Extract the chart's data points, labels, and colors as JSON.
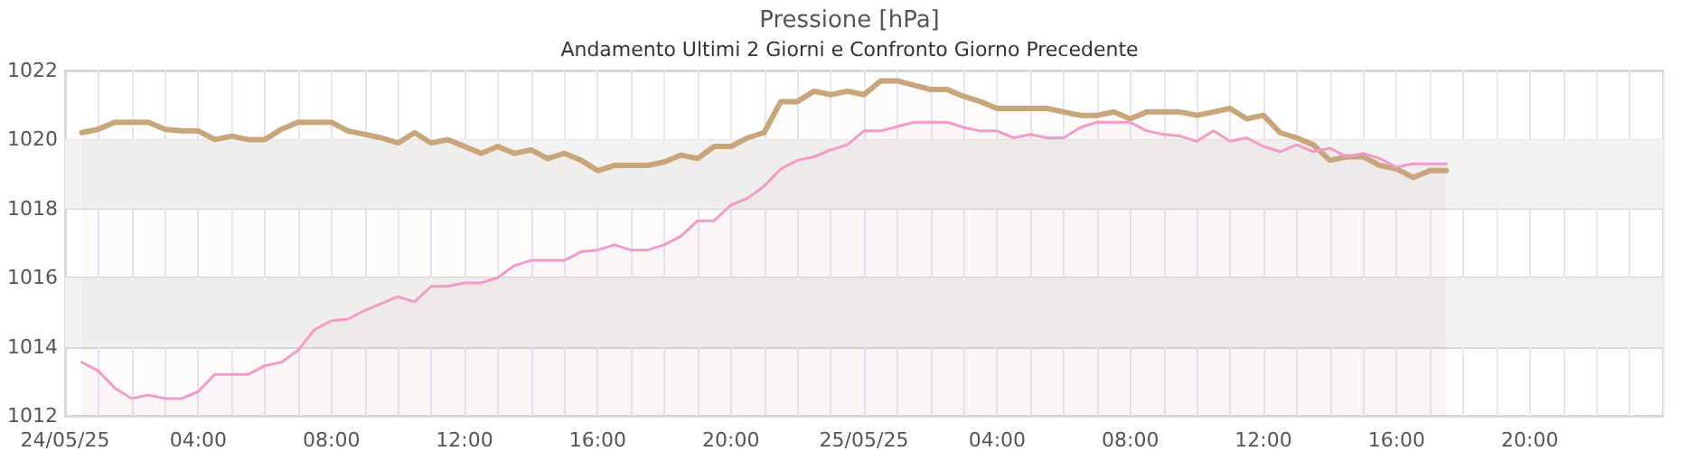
{
  "chart_data": {
    "type": "area",
    "title": "Pressione [hPa]",
    "subtitle": "Andamento Ultimi 2 Giorni e Confronto Giorno Precedente",
    "xlim": [
      "--05-24T00:00",
      "--05-26T00:00"
    ],
    "xticks": [
      {
        "value": "--05-24T00:00",
        "label": "24/05/25"
      },
      {
        "value": "--05-24T01:00",
        "label": null
      },
      {
        "value": "--05-24T02:00",
        "label": null
      },
      {
        "value": "--05-24T03:00",
        "label": null
      },
      {
        "value": "--05-24T04:00",
        "label": "04:00"
      },
      {
        "value": "--05-24T05:00",
        "label": null
      },
      {
        "value": "--05-24T06:00",
        "label": null
      },
      {
        "value": "--05-24T07:00",
        "label": null
      },
      {
        "value": "--05-24T08:00",
        "label": "08:00"
      },
      {
        "value": "--05-24T09:00",
        "label": null
      },
      {
        "value": "--05-24T10:00",
        "label": null
      },
      {
        "value": "--05-24T11:00",
        "label": null
      },
      {
        "value": "--05-24T12:00",
        "label": "12:00"
      },
      {
        "value": "--05-24T13:00",
        "label": null
      },
      {
        "value": "--05-24T14:00",
        "label": null
      },
      {
        "value": "--05-24T15:00",
        "label": null
      },
      {
        "value": "--05-24T16:00",
        "label": "16:00"
      },
      {
        "value": "--05-24T17:00",
        "label": null
      },
      {
        "value": "--05-24T18:00",
        "label": null
      },
      {
        "value": "--05-24T19:00",
        "label": null
      },
      {
        "value": "--05-24T20:00",
        "label": "20:00"
      },
      {
        "value": "--05-24T21:00",
        "label": null
      },
      {
        "value": "--05-24T22:00",
        "label": null
      },
      {
        "value": "--05-24T23:00",
        "label": null
      },
      {
        "value": "--05-25T00:00",
        "label": "25/05/25"
      },
      {
        "value": "--05-25T01:00",
        "label": null
      },
      {
        "value": "--05-25T02:00",
        "label": null
      },
      {
        "value": "--05-25T03:00",
        "label": null
      },
      {
        "value": "--05-25T04:00",
        "label": "04:00"
      },
      {
        "value": "--05-25T05:00",
        "label": null
      },
      {
        "value": "--05-25T06:00",
        "label": null
      },
      {
        "value": "--05-25T07:00",
        "label": null
      },
      {
        "value": "--05-25T08:00",
        "label": "08:00"
      },
      {
        "value": "--05-25T09:00",
        "label": null
      },
      {
        "value": "--05-25T10:00",
        "label": null
      },
      {
        "value": "--05-25T11:00",
        "label": null
      },
      {
        "value": "--05-25T12:00",
        "label": "12:00"
      },
      {
        "value": "--05-25T13:00",
        "label": null
      },
      {
        "value": "--05-25T14:00",
        "label": null
      },
      {
        "value": "--05-25T15:00",
        "label": null
      },
      {
        "value": "--05-25T16:00",
        "label": "16:00"
      },
      {
        "value": "--05-25T17:00",
        "label": null
      },
      {
        "value": "--05-25T18:00",
        "label": null
      },
      {
        "value": "--05-25T19:00",
        "label": null
      },
      {
        "value": "--05-25T20:00",
        "label": "20:00"
      },
      {
        "value": "--05-25T21:00",
        "label": null
      },
      {
        "value": "--05-25T22:00",
        "label": null
      },
      {
        "value": "--05-25T23:00",
        "label": null
      },
      {
        "value": "--05-26T00:00",
        "label": null
      }
    ],
    "ylim": [
      1012,
      1022
    ],
    "yticks": [
      1012,
      1014,
      1016,
      1018,
      1020,
      1022
    ],
    "grid": true,
    "marker": "none",
    "line_style": "solid",
    "bands": [
      {
        "axis": "y",
        "from": 1014,
        "to": 1016,
        "color": "#f2f2f2"
      },
      {
        "axis": "y",
        "from": 1018,
        "to": 1020,
        "color": "#f2f2f2"
      }
    ],
    "series": [
      {
        "color": "#c9a57a",
        "x": [
          "--05-24T00:30",
          "--05-24T01:00",
          "--05-24T01:30",
          "--05-24T02:30",
          "--05-24T03:00",
          "--05-24T03:30",
          "--05-24T04:00",
          "--05-24T04:30",
          "--05-24T05:00",
          "--05-24T05:30",
          "--05-24T06:00",
          "--05-24T06:30",
          "--05-24T07:00",
          "--05-24T08:00",
          "--05-24T08:30",
          "--05-24T09:00",
          "--05-24T09:30",
          "--05-24T10:00",
          "--05-24T10:30",
          "--05-24T11:00",
          "--05-24T11:30",
          "--05-24T12:00",
          "--05-24T12:30",
          "--05-24T13:00",
          "--05-24T13:30",
          "--05-24T14:00",
          "--05-24T14:30",
          "--05-24T15:00",
          "--05-24T15:30",
          "--05-24T16:00",
          "--05-24T16:30",
          "--05-24T17:30",
          "--05-24T18:00",
          "--05-24T18:30",
          "--05-24T19:00",
          "--05-24T19:30",
          "--05-24T20:00",
          "--05-24T20:30",
          "--05-24T21:00",
          "--05-24T21:30",
          "--05-24T22:00",
          "--05-24T22:30",
          "--05-24T23:00",
          "--05-24T23:30",
          "--05-25T00:00",
          "--05-25T00:30",
          "--05-25T01:00",
          "--05-25T02:00",
          "--05-25T02:30",
          "--05-25T03:00",
          "--05-25T03:30",
          "--05-25T04:00",
          "--05-25T05:30",
          "--05-25T06:00",
          "--05-25T06:30",
          "--05-25T07:00",
          "--05-25T07:30",
          "--05-25T08:00",
          "--05-25T08:30",
          "--05-25T09:30",
          "--05-25T10:00",
          "--05-25T10:30",
          "--05-25T11:00",
          "--05-25T11:30",
          "--05-25T12:00",
          "--05-25T12:30",
          "--05-25T13:00",
          "--05-25T13:30",
          "--05-25T14:00",
          "--05-25T14:30",
          "--05-25T15:00",
          "--05-25T15:30",
          "--05-25T16:00",
          "--05-25T16:30",
          "--05-25T17:00",
          "--05-25T17:30"
        ],
        "values": [
          1020.2,
          1020.3,
          1020.5,
          1020.5,
          1020.3,
          1020.25,
          1020.25,
          1020.0,
          1020.1,
          1020.0,
          1020.0,
          1020.3,
          1020.5,
          1020.5,
          1020.25,
          1020.15,
          1020.05,
          1019.9,
          1020.2,
          1019.9,
          1020.0,
          1019.8,
          1019.6,
          1019.8,
          1019.6,
          1019.7,
          1019.45,
          1019.6,
          1019.4,
          1019.1,
          1019.25,
          1019.25,
          1019.35,
          1019.55,
          1019.45,
          1019.8,
          1019.8,
          1020.05,
          1020.2,
          1021.1,
          1021.1,
          1021.4,
          1021.3,
          1021.4,
          1021.3,
          1021.7,
          1021.7,
          1021.45,
          1021.45,
          1021.25,
          1021.1,
          1020.9,
          1020.9,
          1020.8,
          1020.7,
          1020.7,
          1020.8,
          1020.6,
          1020.8,
          1020.8,
          1020.7,
          1020.8,
          1020.9,
          1020.6,
          1020.7,
          1020.2,
          1020.05,
          1019.85,
          1019.4,
          1019.5,
          1019.5,
          1019.25,
          1019.15,
          1018.9,
          1019.1,
          1019.1
        ]
      },
      {
        "color": "#f29bc8",
        "x": [
          "--05-24T00:30",
          "--05-24T01:00",
          "--05-24T01:30",
          "--05-24T02:00",
          "--05-24T02:30",
          "--05-24T03:00",
          "--05-24T03:30",
          "--05-24T04:00",
          "--05-24T04:30",
          "--05-24T05:30",
          "--05-24T06:00",
          "--05-24T06:30",
          "--05-24T07:00",
          "--05-24T07:30",
          "--05-24T08:00",
          "--05-24T08:30",
          "--05-24T09:00",
          "--05-24T09:30",
          "--05-24T10:00",
          "--05-24T10:30",
          "--05-24T11:00",
          "--05-24T11:30",
          "--05-24T12:00",
          "--05-24T12:30",
          "--05-24T13:00",
          "--05-24T13:30",
          "--05-24T14:00",
          "--05-24T15:00",
          "--05-24T15:30",
          "--05-24T16:00",
          "--05-24T16:30",
          "--05-24T17:00",
          "--05-24T17:30",
          "--05-24T18:00",
          "--05-24T18:30",
          "--05-24T19:00",
          "--05-24T19:30",
          "--05-24T20:00",
          "--05-24T20:30",
          "--05-24T21:00",
          "--05-24T21:30",
          "--05-24T22:00",
          "--05-24T22:30",
          "--05-24T23:00",
          "--05-24T23:30",
          "--05-25T00:00",
          "--05-25T00:30",
          "--05-25T01:30",
          "--05-25T02:30",
          "--05-25T03:00",
          "--05-25T03:30",
          "--05-25T04:00",
          "--05-25T04:30",
          "--05-25T05:00",
          "--05-25T05:30",
          "--05-25T06:00",
          "--05-25T06:30",
          "--05-25T07:00",
          "--05-25T08:00",
          "--05-25T08:30",
          "--05-25T09:00",
          "--05-25T09:30",
          "--05-25T10:00",
          "--05-25T10:30",
          "--05-25T11:00",
          "--05-25T11:30",
          "--05-25T12:00",
          "--05-25T12:30",
          "--05-25T13:00",
          "--05-25T13:30",
          "--05-25T14:00",
          "--05-25T14:30",
          "--05-25T15:00",
          "--05-25T15:30",
          "--05-25T16:00",
          "--05-25T16:30",
          "--05-25T17:30"
        ],
        "values": [
          1013.55,
          1013.3,
          1012.8,
          1012.5,
          1012.6,
          1012.5,
          1012.5,
          1012.7,
          1013.2,
          1013.2,
          1013.45,
          1013.55,
          1013.9,
          1014.5,
          1014.75,
          1014.8,
          1015.05,
          1015.25,
          1015.45,
          1015.3,
          1015.75,
          1015.75,
          1015.85,
          1015.85,
          1016.0,
          1016.35,
          1016.5,
          1016.5,
          1016.75,
          1016.8,
          1016.95,
          1016.8,
          1016.8,
          1016.95,
          1017.2,
          1017.65,
          1017.65,
          1018.1,
          1018.3,
          1018.65,
          1019.15,
          1019.4,
          1019.5,
          1019.7,
          1019.85,
          1020.25,
          1020.25,
          1020.5,
          1020.5,
          1020.35,
          1020.25,
          1020.25,
          1020.05,
          1020.15,
          1020.05,
          1020.05,
          1020.35,
          1020.5,
          1020.5,
          1020.25,
          1020.15,
          1020.1,
          1019.95,
          1020.25,
          1019.95,
          1020.05,
          1019.8,
          1019.65,
          1019.85,
          1019.65,
          1019.75,
          1019.5,
          1019.6,
          1019.45,
          1019.2,
          1019.3,
          1019.3
        ]
      }
    ]
  }
}
